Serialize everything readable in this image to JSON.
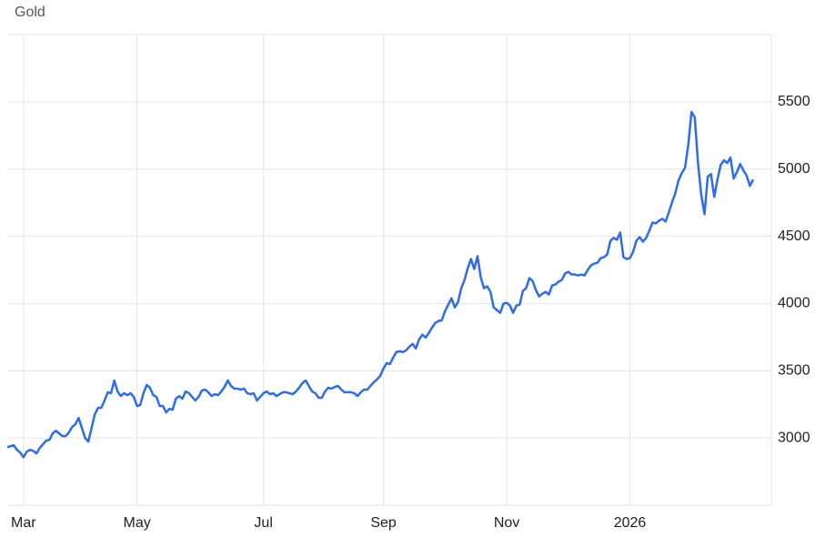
{
  "chart_data": {
    "type": "line",
    "title": "Gold",
    "color": "#2d6cf0",
    "grid": true,
    "ylim": [
      2500,
      6000
    ],
    "yticks": [
      3000,
      3500,
      4000,
      4500,
      5000,
      5500
    ],
    "categories": [
      null,
      null,
      null,
      null,
      null,
      "Mar",
      null,
      null,
      null,
      null,
      null,
      null,
      null,
      null,
      null,
      null,
      null,
      null,
      null,
      null,
      null,
      null,
      null,
      null,
      null,
      null,
      null,
      null,
      null,
      null,
      null,
      null,
      null,
      null,
      null,
      null,
      null,
      null,
      null,
      null,
      "May",
      null,
      null,
      null,
      null,
      null,
      null,
      null,
      null,
      null,
      null,
      null,
      null,
      null,
      null,
      null,
      null,
      null,
      null,
      null,
      null,
      null,
      null,
      null,
      null,
      null,
      null,
      null,
      null,
      null,
      null,
      null,
      null,
      null,
      null,
      null,
      null,
      null,
      null,
      "Jul",
      null,
      null,
      null,
      null,
      null,
      null,
      null,
      null,
      null,
      null,
      null,
      null,
      null,
      null,
      null,
      null,
      null,
      null,
      null,
      null,
      null,
      null,
      null,
      null,
      null,
      null,
      null,
      null,
      null,
      null,
      null,
      null,
      null,
      null,
      null,
      null,
      "Sep",
      null,
      null,
      null,
      null,
      null,
      null,
      null,
      null,
      null,
      null,
      null,
      null,
      null,
      null,
      null,
      null,
      null,
      null,
      null,
      null,
      null,
      null,
      null,
      null,
      null,
      null,
      null,
      null,
      null,
      null,
      null,
      null,
      null,
      null,
      null,
      null,
      null,
      "Nov",
      null,
      null,
      null,
      null,
      null,
      null,
      null,
      null,
      null,
      null,
      null,
      null,
      null,
      null,
      null,
      null,
      null,
      null,
      null,
      null,
      null,
      null,
      null,
      null,
      null,
      null,
      null,
      null,
      null,
      null,
      null,
      null,
      null,
      null,
      null,
      null,
      null,
      "2026",
      null,
      null,
      null,
      null,
      null,
      null,
      null,
      null,
      null,
      null,
      null,
      null,
      null,
      null,
      null,
      null,
      null,
      null,
      null,
      null,
      null,
      null,
      null,
      null,
      null,
      null,
      null,
      null,
      null,
      null,
      null,
      null,
      null,
      null,
      null,
      null,
      null,
      null
    ],
    "values": [
      2932,
      2939,
      2946,
      2912,
      2891,
      2857,
      2898,
      2912,
      2905,
      2885,
      2925,
      2953,
      2980,
      2986,
      3034,
      3054,
      3034,
      3014,
      3014,
      3041,
      3082,
      3102,
      3149,
      3075,
      3000,
      2973,
      3075,
      3177,
      3224,
      3224,
      3279,
      3340,
      3333,
      3428,
      3346,
      3312,
      3333,
      3319,
      3333,
      3306,
      3238,
      3245,
      3333,
      3394,
      3374,
      3319,
      3306,
      3238,
      3238,
      3190,
      3217,
      3211,
      3292,
      3312,
      3292,
      3346,
      3333,
      3306,
      3279,
      3306,
      3353,
      3360,
      3340,
      3312,
      3326,
      3319,
      3346,
      3380,
      3428,
      3387,
      3367,
      3367,
      3360,
      3367,
      3333,
      3326,
      3333,
      3279,
      3306,
      3333,
      3346,
      3326,
      3333,
      3312,
      3326,
      3340,
      3340,
      3333,
      3326,
      3346,
      3374,
      3408,
      3428,
      3387,
      3346,
      3333,
      3299,
      3299,
      3346,
      3374,
      3367,
      3380,
      3387,
      3360,
      3340,
      3340,
      3340,
      3333,
      3312,
      3340,
      3360,
      3360,
      3387,
      3414,
      3435,
      3462,
      3516,
      3557,
      3550,
      3598,
      3639,
      3645,
      3639,
      3652,
      3679,
      3700,
      3666,
      3734,
      3768,
      3747,
      3781,
      3822,
      3856,
      3870,
      3876,
      3944,
      3992,
      4039,
      3971,
      4012,
      4114,
      4175,
      4263,
      4331,
      4257,
      4352,
      4196,
      4114,
      4128,
      4087,
      3971,
      3951,
      3931,
      3999,
      4005,
      3985,
      3931,
      3985,
      3992,
      4094,
      4114,
      4189,
      4168,
      4100,
      4053,
      4073,
      4087,
      4067,
      4134,
      4141,
      4162,
      4175,
      4223,
      4236,
      4216,
      4216,
      4209,
      4216,
      4209,
      4250,
      4284,
      4297,
      4304,
      4338,
      4345,
      4365,
      4467,
      4488,
      4474,
      4528,
      4345,
      4331,
      4338,
      4386,
      4467,
      4494,
      4460,
      4488,
      4542,
      4603,
      4596,
      4617,
      4630,
      4610,
      4678,
      4753,
      4821,
      4916,
      4970,
      5011,
      5181,
      5425,
      5384,
      5045,
      4807,
      4664,
      4943,
      4963,
      4793,
      4922,
      5031,
      5065,
      5045,
      5085,
      4929,
      4977,
      5038,
      4990,
      4950,
      4875,
      4922
    ]
  }
}
